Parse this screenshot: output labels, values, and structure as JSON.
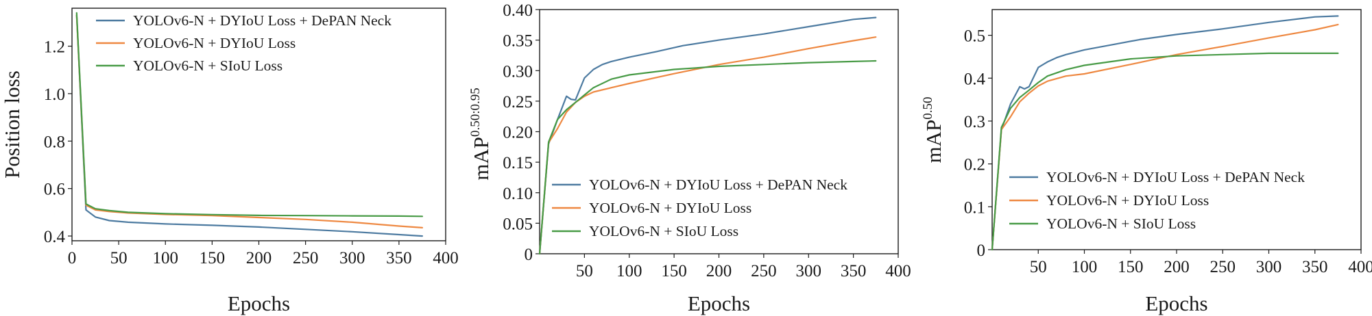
{
  "colors": {
    "series_1": "#4C7AA0",
    "series_2": "#EE8841",
    "series_3": "#479A45",
    "axis": "#1a1a1a"
  },
  "chart_data": [
    {
      "type": "line",
      "xlabel": "Epochs",
      "ylabel": "Position loss",
      "xlim": [
        0,
        400
      ],
      "ylim": [
        0.38,
        1.36
      ],
      "xticks": [
        0,
        50,
        100,
        150,
        200,
        250,
        300,
        350,
        400
      ],
      "yticks": [
        0.4,
        0.6,
        0.8,
        1.0,
        1.2
      ],
      "xtick_labels": [
        "0",
        "50",
        "100",
        "150",
        "200",
        "250",
        "300",
        "350",
        "400"
      ],
      "ytick_labels": [
        "0.4",
        "0.6",
        "0.8",
        "1.0",
        "1.2"
      ],
      "grid": false,
      "legend": "top-right",
      "series": [
        {
          "name": "YOLOv6-N + DYIoU Loss + DePAN Neck",
          "x": [
            5,
            15,
            25,
            40,
            60,
            100,
            150,
            200,
            250,
            300,
            350,
            375
          ],
          "y": [
            1.33,
            0.51,
            0.48,
            0.465,
            0.458,
            0.451,
            0.445,
            0.438,
            0.428,
            0.418,
            0.406,
            0.4
          ]
        },
        {
          "name": "YOLOv6-N + DYIoU Loss",
          "x": [
            5,
            15,
            25,
            40,
            60,
            100,
            150,
            200,
            250,
            300,
            350,
            375
          ],
          "y": [
            1.33,
            0.53,
            0.51,
            0.503,
            0.497,
            0.491,
            0.486,
            0.478,
            0.47,
            0.458,
            0.442,
            0.435
          ]
        },
        {
          "name": "YOLOv6-N + SIoU Loss",
          "x": [
            5,
            15,
            25,
            40,
            60,
            100,
            150,
            200,
            250,
            300,
            350,
            375
          ],
          "y": [
            1.34,
            0.535,
            0.515,
            0.507,
            0.5,
            0.494,
            0.49,
            0.487,
            0.486,
            0.485,
            0.484,
            0.483
          ]
        }
      ]
    },
    {
      "type": "line",
      "xlabel": "Epochs",
      "ylabel_main": "mAP",
      "ylabel_sup": "0.50:0.95",
      "xlim": [
        0,
        400
      ],
      "ylim": [
        0,
        0.4
      ],
      "xticks": [
        50,
        100,
        150,
        200,
        250,
        300,
        350,
        400
      ],
      "yticks": [
        0,
        0.05,
        0.1,
        0.15,
        0.2,
        0.25,
        0.3,
        0.35,
        0.4
      ],
      "xtick_labels": [
        "50",
        "100",
        "150",
        "200",
        "250",
        "300",
        "350",
        "400"
      ],
      "ytick_labels": [
        "0",
        "0.05",
        "0.10",
        "0.15",
        "0.20",
        "0.25",
        "0.30",
        "0.35",
        "0.40"
      ],
      "grid": false,
      "legend": "lower-right",
      "series": [
        {
          "name": "YOLOv6-N + DYIoU Loss + DePAN Neck",
          "x": [
            0,
            10,
            20,
            30,
            35,
            40,
            50,
            60,
            70,
            80,
            100,
            130,
            160,
            200,
            250,
            300,
            350,
            375
          ],
          "y": [
            0,
            0.18,
            0.22,
            0.258,
            0.253,
            0.252,
            0.288,
            0.302,
            0.31,
            0.315,
            0.322,
            0.331,
            0.341,
            0.35,
            0.36,
            0.372,
            0.384,
            0.387
          ]
        },
        {
          "name": "YOLOv6-N + DYIoU Loss",
          "x": [
            0,
            10,
            20,
            30,
            40,
            50,
            60,
            80,
            100,
            150,
            200,
            250,
            300,
            350,
            375
          ],
          "y": [
            0,
            0.182,
            0.205,
            0.232,
            0.248,
            0.258,
            0.265,
            0.272,
            0.279,
            0.295,
            0.31,
            0.322,
            0.336,
            0.349,
            0.355
          ]
        },
        {
          "name": "YOLOv6-N + SIoU Loss",
          "x": [
            0,
            10,
            20,
            30,
            40,
            50,
            60,
            80,
            100,
            150,
            200,
            250,
            300,
            350,
            375
          ],
          "y": [
            0,
            0.183,
            0.22,
            0.236,
            0.248,
            0.26,
            0.272,
            0.286,
            0.293,
            0.302,
            0.307,
            0.31,
            0.313,
            0.315,
            0.316
          ]
        }
      ]
    },
    {
      "type": "line",
      "xlabel": "Epochs",
      "ylabel_main": "mAP",
      "ylabel_sup": "0.50",
      "xlim": [
        0,
        400
      ],
      "ylim": [
        0,
        0.56
      ],
      "xticks": [
        50,
        100,
        150,
        200,
        250,
        300,
        350,
        400
      ],
      "yticks": [
        0,
        0.1,
        0.2,
        0.3,
        0.4,
        0.5
      ],
      "xtick_labels": [
        "50",
        "100",
        "150",
        "200",
        "250",
        "300",
        "350",
        "400"
      ],
      "ytick_labels": [
        "0",
        "0.1",
        "0.2",
        "0.3",
        "0.4",
        "0.5"
      ],
      "grid": false,
      "legend": "lower-right",
      "series": [
        {
          "name": "YOLOv6-N + DYIoU Loss + DePAN Neck",
          "x": [
            0,
            10,
            20,
            30,
            35,
            40,
            50,
            60,
            70,
            80,
            100,
            130,
            160,
            200,
            250,
            300,
            350,
            375
          ],
          "y": [
            0,
            0.28,
            0.34,
            0.38,
            0.375,
            0.38,
            0.425,
            0.438,
            0.448,
            0.455,
            0.466,
            0.478,
            0.49,
            0.502,
            0.515,
            0.53,
            0.543,
            0.545
          ]
        },
        {
          "name": "YOLOv6-N + DYIoU Loss",
          "x": [
            0,
            10,
            20,
            30,
            40,
            50,
            60,
            80,
            100,
            150,
            200,
            250,
            300,
            350,
            375
          ],
          "y": [
            0,
            0.28,
            0.31,
            0.345,
            0.365,
            0.382,
            0.393,
            0.405,
            0.41,
            0.432,
            0.455,
            0.474,
            0.494,
            0.513,
            0.525
          ]
        },
        {
          "name": "YOLOv6-N + SIoU Loss",
          "x": [
            0,
            10,
            20,
            30,
            40,
            50,
            60,
            80,
            100,
            150,
            200,
            250,
            300,
            350,
            375
          ],
          "y": [
            0,
            0.285,
            0.33,
            0.355,
            0.372,
            0.39,
            0.405,
            0.42,
            0.43,
            0.445,
            0.452,
            0.455,
            0.458,
            0.458,
            0.458
          ]
        }
      ]
    }
  ]
}
